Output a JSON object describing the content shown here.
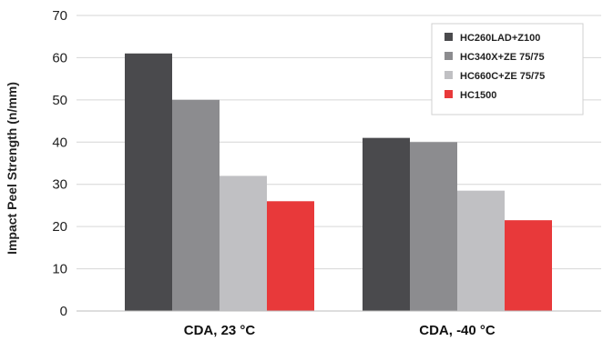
{
  "chart_data": {
    "type": "bar",
    "ylabel": "Impact Peel Strength (n/mm)",
    "ylim": [
      0,
      70
    ],
    "yticks": [
      0,
      10,
      20,
      30,
      40,
      50,
      60,
      70
    ],
    "grid": true,
    "legend_position": "top-right",
    "categories": [
      "CDA, 23 °C",
      "CDA, -40 °C"
    ],
    "series": [
      {
        "name": "HC260LAD+Z100",
        "color": "#4a4a4d",
        "values": [
          61,
          41
        ]
      },
      {
        "name": "HC340X+ZE 75/75",
        "color": "#8c8c8f",
        "values": [
          50,
          40
        ]
      },
      {
        "name": "HC660C+ZE 75/75",
        "color": "#c0c0c3",
        "values": [
          32,
          28.5
        ]
      },
      {
        "name": "HC1500",
        "color": "#e8393a",
        "values": [
          26,
          21.5
        ]
      }
    ]
  }
}
